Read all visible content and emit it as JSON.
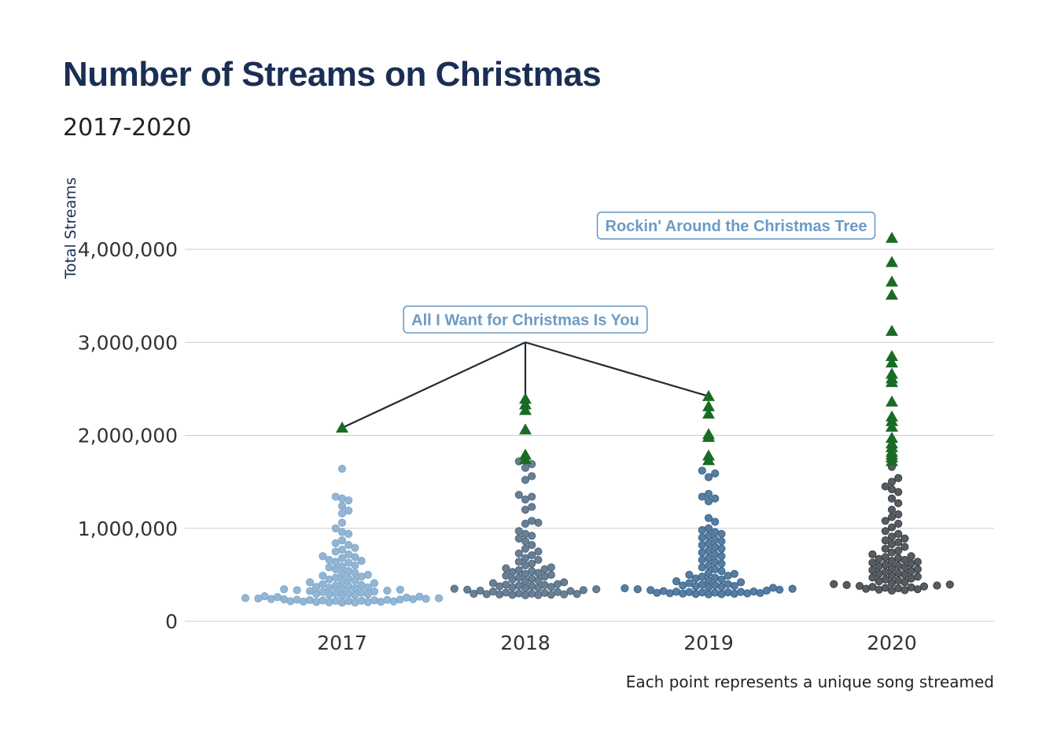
{
  "chart_data": {
    "type": "scatter",
    "title": "Number of Streams on Christmas",
    "subtitle": "2017-2020",
    "ylabel": "Total Streams",
    "xlabel": "",
    "caption": "Each point represents a unique song streamed",
    "categories": [
      "2017",
      "2018",
      "2019",
      "2020"
    ],
    "y_ticks": [
      0,
      1000000,
      2000000,
      3000000,
      4000000
    ],
    "y_tick_labels": [
      "0",
      "1,000,000",
      "2,000,000",
      "3,000,000",
      "4,000,000"
    ],
    "ylim": [
      0,
      4200000
    ],
    "grid": true,
    "series": [
      {
        "category": "2017",
        "color": "#7fa9cc",
        "highlight": [
          2080000
        ],
        "values": [
          1640000,
          1340000,
          1320000,
          1300000,
          1240000,
          1190000,
          1160000,
          1060000,
          1000000,
          960000,
          940000,
          870000,
          840000,
          820000,
          790000,
          770000,
          750000,
          720000,
          700000,
          690000,
          680000,
          660000,
          650000,
          640000,
          630000,
          600000,
          590000,
          580000,
          560000,
          540000,
          520000,
          510000,
          500000,
          490000,
          480000,
          470000,
          460000,
          450000,
          440000,
          430000,
          420000,
          410000,
          400000,
          390000,
          385000,
          380000,
          370000,
          365000,
          360000,
          355000,
          350000,
          345000,
          340000,
          335000,
          330000,
          325000,
          320000,
          315000,
          310000,
          305000,
          300000,
          295000,
          290000,
          285000,
          280000,
          275000,
          270000,
          265000,
          260000,
          255000,
          250000,
          248000,
          245000,
          242000,
          240000,
          238000,
          236000,
          234000,
          232000,
          230000,
          228000,
          226000,
          224000,
          222000,
          220000,
          218000,
          216000,
          214000,
          212000,
          210000,
          208000,
          206000,
          204000,
          202000,
          200000
        ]
      },
      {
        "category": "2018",
        "color": "#4f6880",
        "highlight": [
          2390000,
          2330000,
          2270000,
          2060000,
          1790000,
          1740000
        ],
        "values": [
          1720000,
          1690000,
          1650000,
          1560000,
          1520000,
          1360000,
          1340000,
          1310000,
          1230000,
          1200000,
          1080000,
          1060000,
          1050000,
          970000,
          940000,
          920000,
          890000,
          860000,
          820000,
          780000,
          750000,
          730000,
          710000,
          680000,
          660000,
          640000,
          620000,
          600000,
          580000,
          570000,
          560000,
          550000,
          540000,
          530000,
          520000,
          510000,
          500000,
          490000,
          480000,
          470000,
          460000,
          450000,
          440000,
          430000,
          420000,
          410000,
          400000,
          395000,
          390000,
          385000,
          380000,
          375000,
          370000,
          365000,
          360000,
          355000,
          350000,
          345000,
          340000,
          335000,
          330000,
          325000,
          320000,
          315000,
          310000,
          305000,
          300000,
          298000,
          296000,
          294000,
          292000,
          290000,
          288000,
          286000,
          284000,
          282000,
          280000
        ]
      },
      {
        "category": "2019",
        "color": "#3a6690",
        "highlight": [
          2420000,
          2310000,
          2230000,
          2010000,
          1980000,
          1780000,
          1730000
        ],
        "values": [
          1620000,
          1590000,
          1550000,
          1370000,
          1340000,
          1320000,
          1290000,
          1110000,
          1070000,
          1000000,
          980000,
          960000,
          940000,
          920000,
          900000,
          880000,
          860000,
          840000,
          820000,
          800000,
          780000,
          760000,
          740000,
          720000,
          700000,
          680000,
          660000,
          640000,
          620000,
          600000,
          580000,
          560000,
          540000,
          520000,
          510000,
          500000,
          490000,
          480000,
          470000,
          460000,
          450000,
          440000,
          430000,
          420000,
          410000,
          400000,
          395000,
          390000,
          385000,
          380000,
          375000,
          370000,
          365000,
          360000,
          355000,
          350000,
          345000,
          340000,
          335000,
          330000,
          325000,
          320000,
          318000,
          316000,
          314000,
          312000,
          310000,
          308000,
          306000,
          304000,
          302000,
          300000,
          298000,
          296000,
          294000,
          292000,
          290000
        ]
      },
      {
        "category": "2020",
        "color": "#393f45",
        "highlight": [
          4120000,
          3860000,
          3650000,
          3510000,
          3120000,
          2850000,
          2780000,
          2660000,
          2610000,
          2570000,
          2360000,
          2200000,
          2150000,
          2090000,
          1970000,
          1910000,
          1870000,
          1820000,
          1790000,
          1760000,
          1720000
        ],
        "values": [
          1660000,
          1540000,
          1500000,
          1450000,
          1420000,
          1390000,
          1320000,
          1270000,
          1200000,
          1150000,
          1120000,
          1080000,
          1050000,
          1010000,
          970000,
          940000,
          910000,
          890000,
          870000,
          850000,
          830000,
          800000,
          780000,
          760000,
          740000,
          720000,
          700000,
          690000,
          680000,
          670000,
          660000,
          650000,
          640000,
          630000,
          620000,
          610000,
          600000,
          590000,
          580000,
          570000,
          560000,
          550000,
          540000,
          530000,
          520000,
          510000,
          500000,
          490000,
          480000,
          470000,
          460000,
          450000,
          440000,
          430000,
          420000,
          410000,
          400000,
          395000,
          390000,
          385000,
          380000,
          375000,
          370000,
          365000,
          360000,
          355000,
          350000,
          345000,
          340000,
          335000,
          330000
        ]
      }
    ],
    "annotations": [
      {
        "label": "All I Want for Christmas Is You",
        "label_x": "2018",
        "label_y": 3000000,
        "connects_to": [
          [
            "2017",
            2080000
          ],
          [
            "2018",
            2390000
          ],
          [
            "2019",
            2420000
          ]
        ]
      },
      {
        "label": "Rockin' Around the Christmas Tree",
        "label_x": "2020",
        "label_y": 4120000,
        "connects_to": [
          [
            "2020",
            4120000
          ]
        ]
      }
    ],
    "highlight_color": "#1a6b24",
    "highlight_shape": "triangle"
  }
}
